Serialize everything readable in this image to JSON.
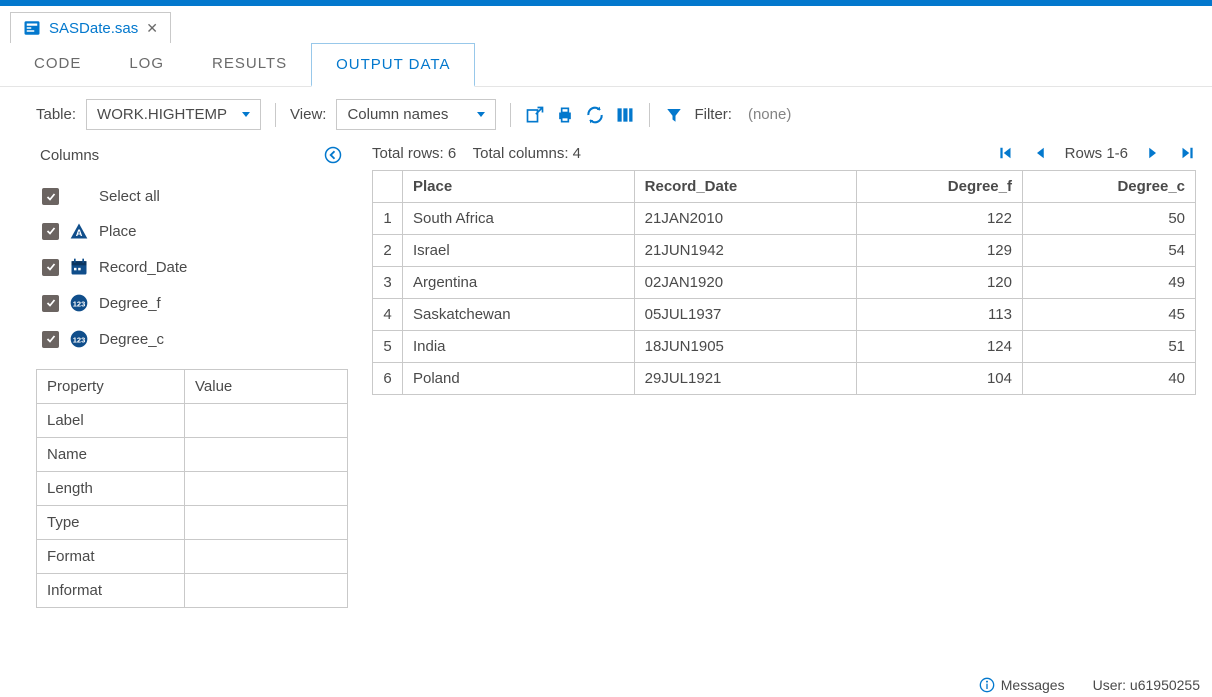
{
  "colors": {
    "accent": "#0378cd",
    "border": "#c9c9c9",
    "text": "#4a4a4a",
    "muted": "#848484",
    "checkbox": "#6b6461",
    "numeric_badge": "#104e8b"
  },
  "file_tab": {
    "name": "SASDate.sas"
  },
  "view_tabs": {
    "code": "CODE",
    "log": "LOG",
    "results": "RESULTS",
    "output_data": "OUTPUT DATA",
    "active": "output_data"
  },
  "toolbar": {
    "table_label": "Table:",
    "table_value": "WORK.HIGHTEMP",
    "view_label": "View:",
    "view_value": "Column names",
    "filter_label": "Filter:",
    "filter_value": "(none)"
  },
  "columns_panel": {
    "title": "Columns",
    "select_all": "Select all",
    "items": [
      {
        "name": "Place",
        "type": "char"
      },
      {
        "name": "Record_Date",
        "type": "date"
      },
      {
        "name": "Degree_f",
        "type": "num"
      },
      {
        "name": "Degree_c",
        "type": "num"
      }
    ]
  },
  "property_table": {
    "header_prop": "Property",
    "header_val": "Value",
    "rows": [
      {
        "prop": "Label",
        "val": ""
      },
      {
        "prop": "Name",
        "val": ""
      },
      {
        "prop": "Length",
        "val": ""
      },
      {
        "prop": "Type",
        "val": ""
      },
      {
        "prop": "Format",
        "val": ""
      },
      {
        "prop": "Informat",
        "val": ""
      }
    ]
  },
  "data": {
    "total_rows_label": "Total rows: 6",
    "total_cols_label": "Total columns: 4",
    "page_label": "Rows 1-6",
    "columns": [
      {
        "name": "Place",
        "align": "left"
      },
      {
        "name": "Record_Date",
        "align": "left"
      },
      {
        "name": "Degree_f",
        "align": "right"
      },
      {
        "name": "Degree_c",
        "align": "right"
      }
    ],
    "rows": [
      [
        "South Africa",
        "21JAN2010",
        "122",
        "50"
      ],
      [
        "Israel",
        "21JUN1942",
        "129",
        "54"
      ],
      [
        "Argentina",
        "02JAN1920",
        "120",
        "49"
      ],
      [
        "Saskatchewan",
        "05JUL1937",
        "113",
        "45"
      ],
      [
        "India",
        "18JUN1905",
        "124",
        "51"
      ],
      [
        "Poland",
        "29JUL1921",
        "104",
        "40"
      ]
    ]
  },
  "statusbar": {
    "messages": "Messages",
    "user_label": "User:",
    "user_value": "u61950255"
  }
}
